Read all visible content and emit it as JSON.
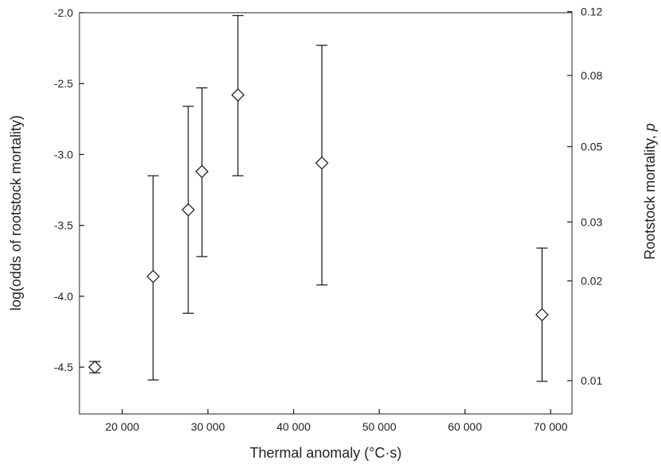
{
  "chart_data": {
    "type": "scatter",
    "title": "",
    "xlabel": "Thermal anomaly (°C·s)",
    "ylabel": "log(odds of rootstock mortality)",
    "y2label": "Rootstock mortality, p",
    "y2label_main": "Rootstock mortality, ",
    "y2label_var": "p",
    "xlim": [
      15000,
      72500
    ],
    "ylim": [
      -4.83,
      -2.0
    ],
    "xticks": [
      20000,
      30000,
      40000,
      50000,
      60000,
      70000
    ],
    "xtick_labels": [
      "20 000",
      "30 000",
      "40 000",
      "50 000",
      "60 000",
      "70 000"
    ],
    "yticks": [
      -4.5,
      -4.0,
      -3.5,
      -3.0,
      -2.5,
      -2.0
    ],
    "ytick_labels": [
      "-4.5",
      "-4.0",
      "-3.5",
      "-3.0",
      "-2.5",
      "-2.0"
    ],
    "y2ticks": [
      0.01,
      0.02,
      0.03,
      0.05,
      0.08,
      0.12
    ],
    "y2tick_labels": [
      "0.01",
      "0.02",
      "0.03",
      "0.05",
      "0.08",
      "0.12"
    ],
    "grid": false,
    "marker": "diamond-open",
    "points": [
      {
        "x": 16800,
        "y": -4.5,
        "lo": -4.54,
        "hi": -4.46
      },
      {
        "x": 23600,
        "y": -3.86,
        "lo": -4.59,
        "hi": -3.15
      },
      {
        "x": 27700,
        "y": -3.39,
        "lo": -4.12,
        "hi": -2.66
      },
      {
        "x": 29300,
        "y": -3.12,
        "lo": -3.72,
        "hi": -2.53
      },
      {
        "x": 33500,
        "y": -2.58,
        "lo": -3.15,
        "hi": -2.02
      },
      {
        "x": 43300,
        "y": -3.06,
        "lo": -3.92,
        "hi": -2.23
      },
      {
        "x": 69000,
        "y": -4.13,
        "lo": -4.6,
        "hi": -3.66
      }
    ]
  }
}
